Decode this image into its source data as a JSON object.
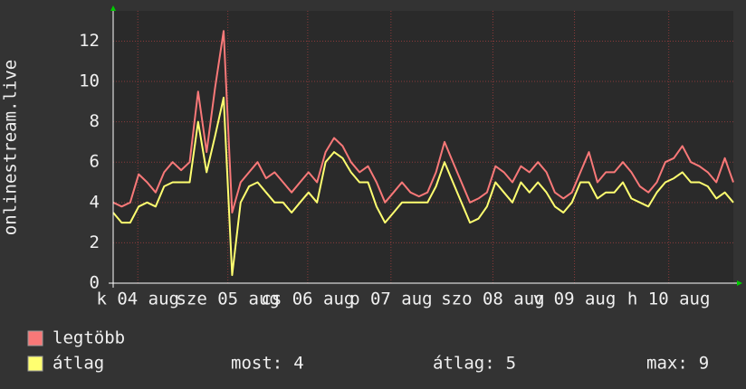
{
  "chart_data": {
    "type": "line",
    "y_label": "onlinestream.live",
    "x": [
      0,
      0.1,
      0.2,
      0.3,
      0.4,
      0.5,
      0.6,
      0.7,
      0.8,
      0.9,
      1,
      1.1,
      1.2,
      1.3,
      1.4,
      1.5,
      1.6,
      1.7,
      1.8,
      1.9,
      2,
      2.1,
      2.2,
      2.3,
      2.4,
      2.5,
      2.6,
      2.7,
      2.8,
      2.9,
      3,
      3.1,
      3.2,
      3.3,
      3.4,
      3.5,
      3.6,
      3.7,
      3.8,
      3.9,
      4,
      4.1,
      4.2,
      4.3,
      4.4,
      4.5,
      4.6,
      4.7,
      4.8,
      4.9,
      5,
      5.1,
      5.2,
      5.3,
      5.4,
      5.5,
      5.6,
      5.7,
      5.8,
      5.9,
      6,
      6.1,
      6.2,
      6.3,
      6.4,
      6.5,
      6.6,
      6.7,
      6.8,
      6.9,
      7,
      7.1,
      7.2,
      7.3
    ],
    "series": [
      {
        "name": "legtöbb",
        "color": "#f87878",
        "values": [
          4,
          3.8,
          4,
          5.4,
          5,
          4.5,
          5.5,
          6,
          5.6,
          6,
          9.5,
          6.5,
          9.7,
          12.5,
          3.5,
          5,
          5.5,
          6,
          5.2,
          5.5,
          5,
          4.5,
          5,
          5.5,
          5,
          6.5,
          7.2,
          6.8,
          6,
          5.5,
          5.8,
          5,
          4,
          4.5,
          5,
          4.5,
          4.3,
          4.5,
          5.5,
          7,
          6,
          5,
          4,
          4.2,
          4.5,
          5.8,
          5.5,
          5,
          5.8,
          5.5,
          6,
          5.5,
          4.5,
          4.2,
          4.5,
          5.5,
          6.5,
          5,
          5.5,
          5.5,
          6,
          5.5,
          4.8,
          4.5,
          5,
          6,
          6.2,
          6.8,
          6,
          5.8,
          5.5,
          5,
          6.2,
          5
        ]
      },
      {
        "name": "átlag",
        "color": "#ffff70",
        "values": [
          3.5,
          3,
          3,
          3.8,
          4,
          3.8,
          4.8,
          5,
          5,
          5,
          8,
          5.5,
          7.3,
          9.2,
          0.4,
          4,
          4.8,
          5,
          4.5,
          4,
          4,
          3.5,
          4,
          4.5,
          4,
          6,
          6.5,
          6.2,
          5.5,
          5,
          5,
          3.8,
          3,
          3.5,
          4,
          4,
          4,
          4,
          4.8,
          6,
          5,
          4,
          3,
          3.2,
          3.8,
          5,
          4.5,
          4,
          5,
          4.5,
          5,
          4.5,
          3.8,
          3.5,
          4,
          5,
          5,
          4.2,
          4.5,
          4.5,
          5,
          4.2,
          4,
          3.8,
          4.5,
          5,
          5.2,
          5.5,
          5,
          5,
          4.8,
          4.2,
          4.5,
          4
        ]
      }
    ],
    "xlim": [
      0,
      7.3
    ],
    "xticks": [
      {
        "value": 0.29,
        "label": "k 04 aug"
      },
      {
        "value": 1.35,
        "label": "sze 05 aug"
      },
      {
        "value": 2.29,
        "label": "cs 06 aug"
      },
      {
        "value": 3.27,
        "label": "p 07 aug"
      },
      {
        "value": 4.47,
        "label": "szo 08 aug"
      },
      {
        "value": 5.43,
        "label": "v 09 aug"
      },
      {
        "value": 6.54,
        "label": "h 10 aug"
      }
    ],
    "ylim": [
      0,
      13.5
    ],
    "yticks": [
      0,
      2,
      4,
      6,
      8,
      10,
      12
    ],
    "grid": true,
    "stats": [
      {
        "label": "most:",
        "value": 4
      },
      {
        "label": "átlag:",
        "value": 5
      },
      {
        "label": "max:",
        "value": 9
      }
    ]
  }
}
